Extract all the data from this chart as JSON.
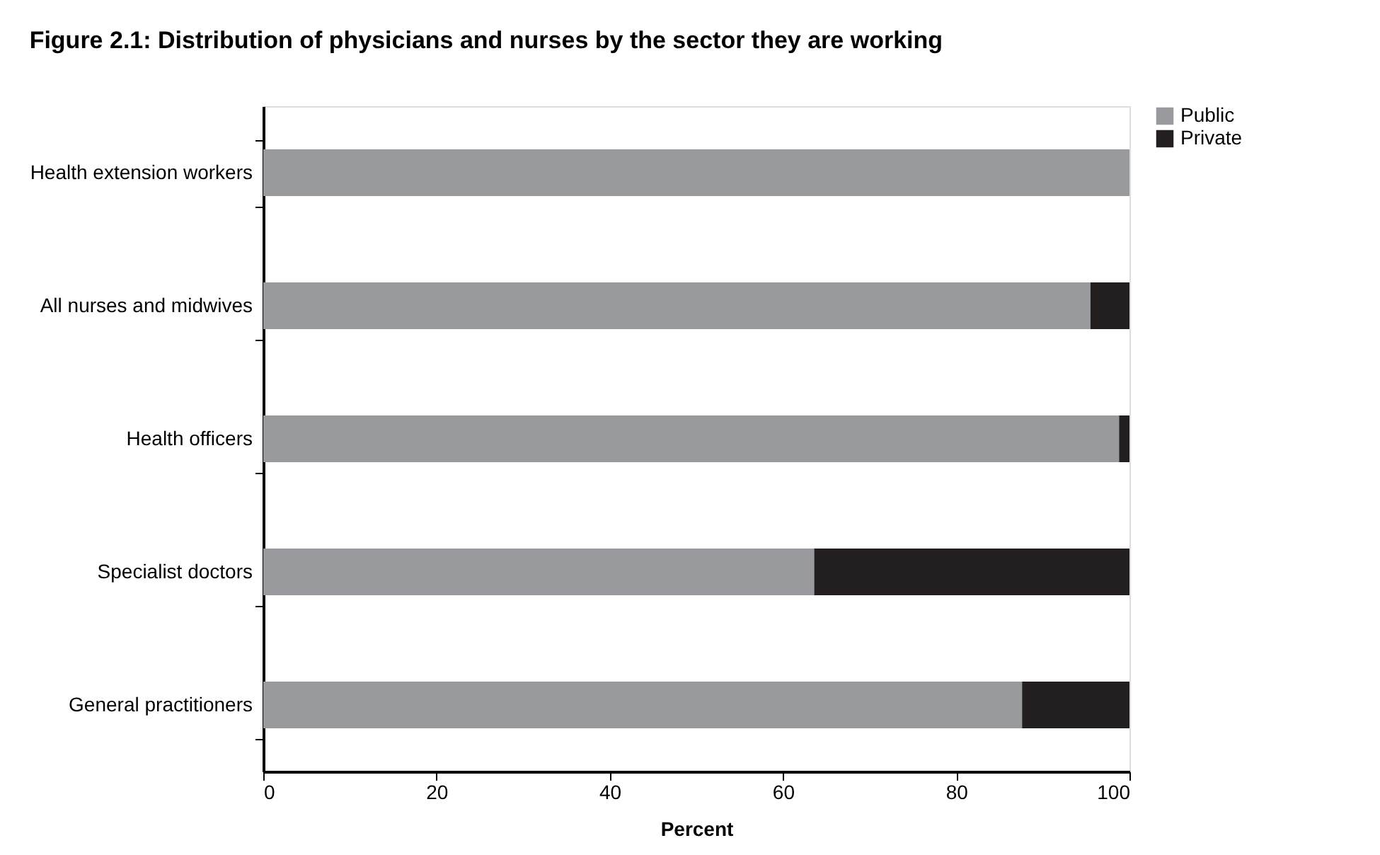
{
  "chart_data": {
    "type": "bar",
    "orientation": "horizontal",
    "stacked": true,
    "title": "Figure 2.1: Distribution of physicians and nurses by the sector they are working",
    "categories": [
      "Health extension workers",
      "All nurses and midwives",
      "Health officers",
      "Specialist doctors",
      "General practitioners"
    ],
    "series": [
      {
        "name": "Public",
        "color": "#999a9e",
        "values": [
          100,
          95.5,
          98.8,
          63.6,
          87.6
        ]
      },
      {
        "name": "Private",
        "color": "#231f20",
        "values": [
          0,
          4.5,
          1.2,
          36.4,
          12.4
        ]
      }
    ],
    "xlabel": "Percent",
    "xlim": [
      0,
      100
    ],
    "xticks": [
      0,
      20,
      40,
      60,
      80,
      100
    ],
    "grid": false,
    "legend": "right"
  }
}
